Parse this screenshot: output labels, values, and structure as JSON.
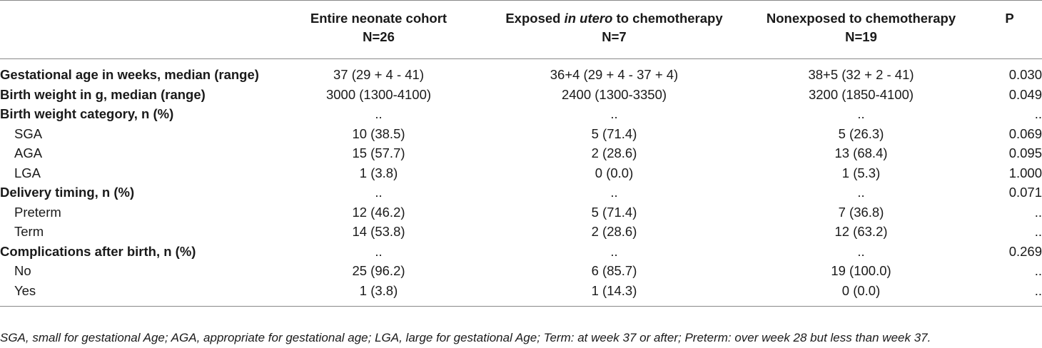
{
  "header": {
    "col1_line1": "Entire neonate cohort",
    "col1_line2": "N=26",
    "col2_pre": "Exposed ",
    "col2_italic": "in utero",
    "col2_post": " to chemotherapy",
    "col2_line2": "N=7",
    "col3_line1": "Nonexposed to chemotherapy",
    "col3_line2": "N=19",
    "col4": "P"
  },
  "rows": [
    {
      "label": "Gestational age in weeks, median (range)",
      "entire": "37  (29 + 4 - 41)",
      "exposed": "36+4  (29 + 4 - 37 + 4)",
      "nonexposed": "38+5  (32 + 2 - 41)",
      "p": "0.030"
    },
    {
      "label": "Birth weight in g, median  (range)",
      "entire": "3000 (1300-4100)",
      "exposed": "2400 (1300-3350)",
      "nonexposed": "3200 (1850-4100)",
      "p": "0.049"
    },
    {
      "label": "Birth weight category, n (%)",
      "entire": "..",
      "exposed": "..",
      "nonexposed": "..",
      "p": ".."
    },
    {
      "label": "SGA",
      "entire": "10 (38.5)",
      "exposed": "5 (71.4)",
      "nonexposed": "5 (26.3)",
      "p": "0.069"
    },
    {
      "label": "AGA",
      "entire": "15 (57.7)",
      "exposed": "2 (28.6)",
      "nonexposed": "13 (68.4)",
      "p": "0.095"
    },
    {
      "label": "LGA",
      "entire": "1 (3.8)",
      "exposed": "0 (0.0)",
      "nonexposed": "1 (5.3)",
      "p": "1.000"
    },
    {
      "label": "Delivery timing, n (%)",
      "entire": "..",
      "exposed": "..",
      "nonexposed": "..",
      "p": "0.071"
    },
    {
      "label": "Preterm",
      "entire": "12 (46.2)",
      "exposed": "5 (71.4)",
      "nonexposed": "7 (36.8)",
      "p": ".."
    },
    {
      "label": "Term",
      "entire": "14 (53.8)",
      "exposed": "2 (28.6)",
      "nonexposed": "12 (63.2)",
      "p": ".."
    },
    {
      "label": "Complications after birth, n (%)",
      "entire": "..",
      "exposed": "..",
      "nonexposed": "..",
      "p": "0.269"
    },
    {
      "label": "No",
      "entire": "25 (96.2)",
      "exposed": "6 (85.7)",
      "nonexposed": "19 (100.0)",
      "p": ".."
    },
    {
      "label": "Yes",
      "entire": "1 (3.8)",
      "exposed": "1 (14.3)",
      "nonexposed": "0 (0.0)",
      "p": ".."
    }
  ],
  "footnote": "SGA, small for gestational Age; AGA, appropriate for gestational age; LGA, large for gestational Age; Term: at week 37 or after; Preterm: over week 28 but less than week 37."
}
